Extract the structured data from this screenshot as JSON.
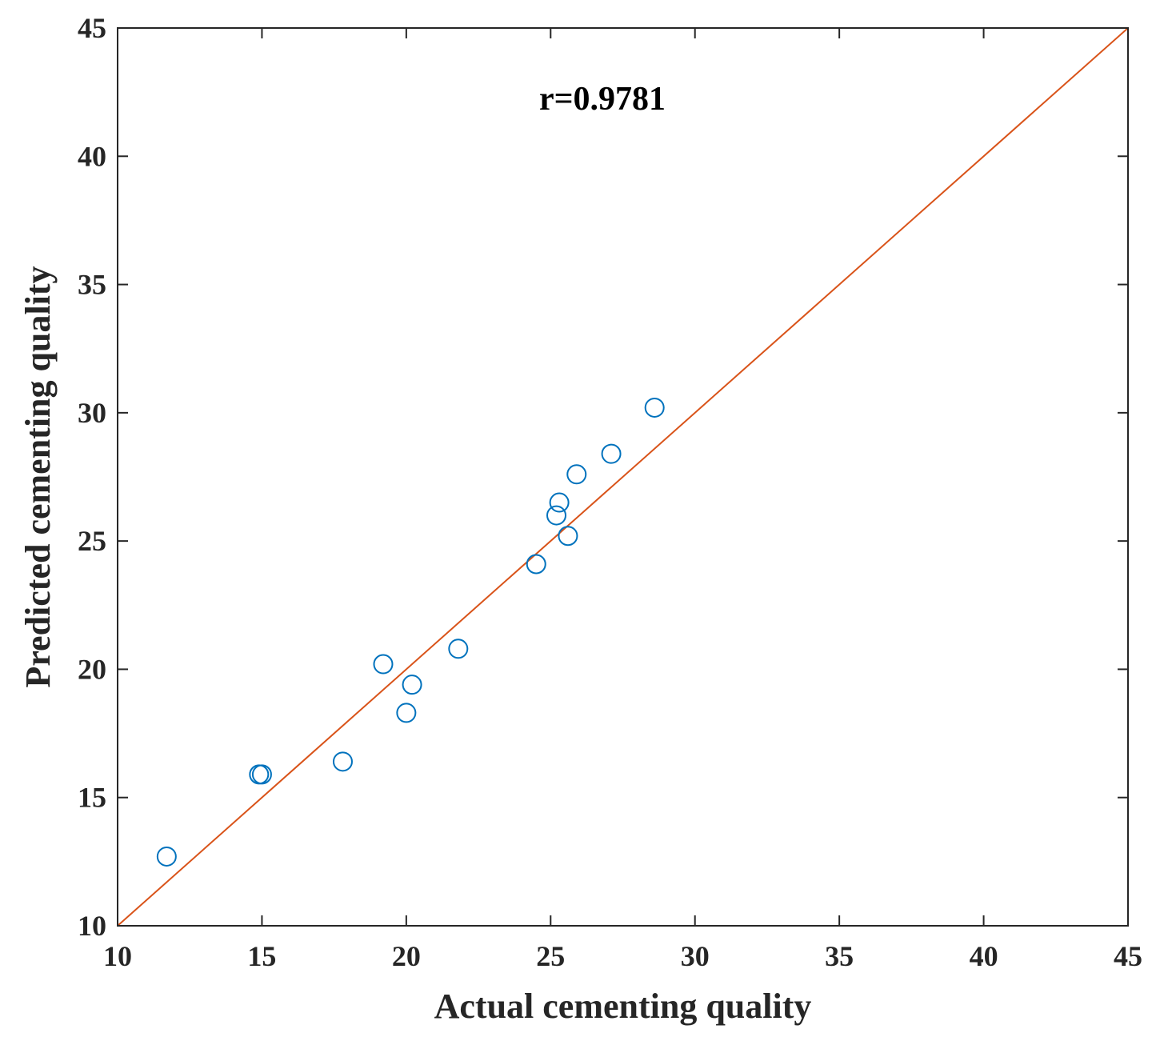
{
  "chart_data": {
    "type": "scatter",
    "xlabel": "Actual cementing quality",
    "ylabel": "Predicted cementing quality",
    "annotation": "r=0.9781",
    "xlim": [
      10,
      45
    ],
    "ylim": [
      10,
      45
    ],
    "xticks": [
      "10",
      "15",
      "20",
      "25",
      "30",
      "35",
      "40",
      "45"
    ],
    "yticks": [
      "10",
      "15",
      "20",
      "25",
      "30",
      "35",
      "40",
      "45"
    ],
    "grid": false,
    "reference_line": {
      "name": "y = x",
      "points": [
        [
          10,
          10
        ],
        [
          45,
          45
        ]
      ],
      "color": "#d95319"
    },
    "series": [
      {
        "name": "samples",
        "marker": "open-circle",
        "color": "#0072bd",
        "x": [
          11.7,
          14.9,
          15.0,
          17.8,
          19.2,
          20.0,
          20.2,
          21.8,
          24.5,
          25.2,
          25.3,
          25.6,
          25.9,
          27.1,
          28.6
        ],
        "y": [
          12.7,
          15.9,
          15.9,
          16.4,
          20.2,
          18.3,
          19.4,
          20.8,
          24.1,
          26.0,
          26.5,
          25.2,
          27.6,
          28.4,
          30.2
        ]
      }
    ]
  }
}
